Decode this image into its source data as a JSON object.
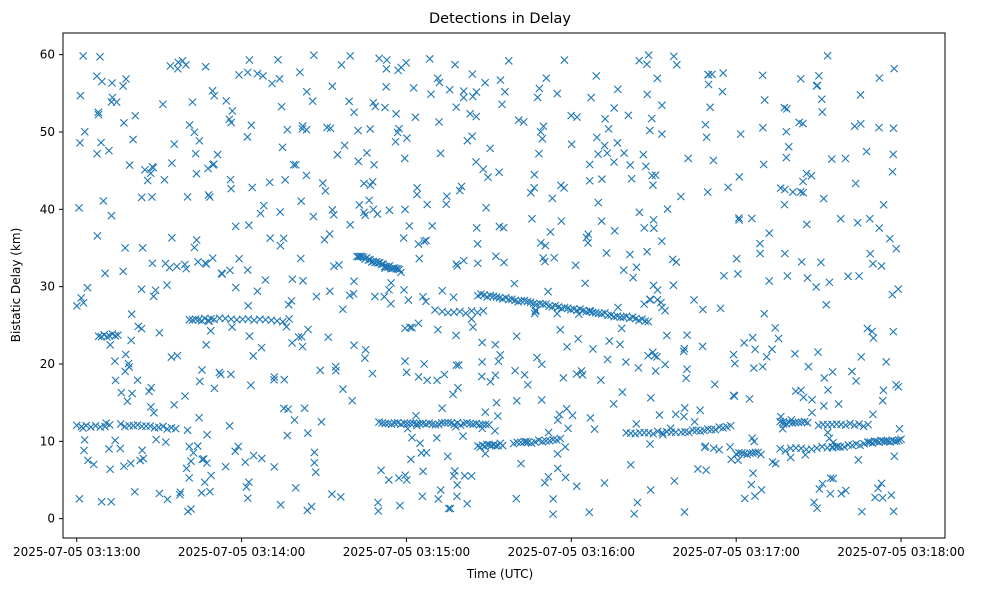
{
  "chart_data": {
    "type": "scatter",
    "title": "Detections in Delay",
    "xlabel": "Time (UTC)",
    "ylabel": "Bistatic Delay (km)",
    "marker": "x",
    "color": "#1f77b4",
    "grid": false,
    "xlim": [
      "2025-07-05 03:12:55",
      "2025-07-05 03:18:16"
    ],
    "ylim": [
      -2.5,
      62.8
    ],
    "x_ticks": [
      "2025-07-05 03:13:00",
      "2025-07-05 03:14:00",
      "2025-07-05 03:15:00",
      "2025-07-05 03:16:00",
      "2025-07-05 03:17:00",
      "2025-07-05 03:18:00"
    ],
    "y_ticks": [
      0,
      10,
      20,
      30,
      40,
      50,
      60
    ],
    "time_range": [
      "2025-07-05 03:13:00",
      "2025-07-05 03:18:00"
    ],
    "tracks": [
      {
        "t_start": "2025-07-05 03:13:00",
        "t_end": "2025-07-05 03:13:12",
        "delay_start": 12.0,
        "delay_end": 12.0,
        "points": 8
      },
      {
        "t_start": "2025-07-05 03:13:08",
        "t_end": "2025-07-05 03:13:15",
        "delay_start": 23.6,
        "delay_end": 23.8,
        "points": 8
      },
      {
        "t_start": "2025-07-05 03:13:16",
        "t_end": "2025-07-05 03:13:36",
        "delay_start": 12.1,
        "delay_end": 11.7,
        "points": 14
      },
      {
        "t_start": "2025-07-05 03:13:41",
        "t_end": "2025-07-05 03:13:50",
        "delay_start": 25.6,
        "delay_end": 25.8,
        "points": 9
      },
      {
        "t_start": "2025-07-05 03:13:52",
        "t_end": "2025-07-05 03:14:15",
        "delay_start": 26.0,
        "delay_end": 25.4,
        "points": 12
      },
      {
        "t_start": "2025-07-05 03:14:42",
        "t_end": "2025-07-05 03:14:58",
        "delay_start": 34.0,
        "delay_end": 32.0,
        "points": 28
      },
      {
        "t_start": "2025-07-05 03:14:50",
        "t_end": "2025-07-05 03:15:30",
        "delay_start": 12.4,
        "delay_end": 12.2,
        "points": 36
      },
      {
        "t_start": "2025-07-05 03:15:13",
        "t_end": "2025-07-05 03:15:28",
        "delay_start": 26.6,
        "delay_end": 26.8,
        "points": 8
      },
      {
        "t_start": "2025-07-05 03:15:26",
        "t_end": "2025-07-05 03:16:28",
        "delay_start": 29.0,
        "delay_end": 25.6,
        "points": 56
      },
      {
        "t_start": "2025-07-05 03:15:26",
        "t_end": "2025-07-05 03:15:35",
        "delay_start": 9.4,
        "delay_end": 9.6,
        "points": 12
      },
      {
        "t_start": "2025-07-05 03:15:39",
        "t_end": "2025-07-05 03:15:56",
        "delay_start": 9.7,
        "delay_end": 10.3,
        "points": 14
      },
      {
        "t_start": "2025-07-05 03:16:20",
        "t_end": "2025-07-05 03:16:38",
        "delay_start": 11.0,
        "delay_end": 11.2,
        "points": 12
      },
      {
        "t_start": "2025-07-05 03:16:40",
        "t_end": "2025-07-05 03:16:58",
        "delay_start": 11.1,
        "delay_end": 11.9,
        "points": 14
      },
      {
        "t_start": "2025-07-05 03:17:00",
        "t_end": "2025-07-05 03:17:09",
        "delay_start": 8.5,
        "delay_end": 8.4,
        "points": 10
      },
      {
        "t_start": "2025-07-05 03:17:16",
        "t_end": "2025-07-05 03:17:26",
        "delay_start": 12.4,
        "delay_end": 12.4,
        "points": 10
      },
      {
        "t_start": "2025-07-05 03:17:16",
        "t_end": "2025-07-05 03:17:37",
        "delay_start": 8.9,
        "delay_end": 9.3,
        "points": 12
      },
      {
        "t_start": "2025-07-05 03:17:30",
        "t_end": "2025-07-05 03:17:48",
        "delay_start": 12.2,
        "delay_end": 12.1,
        "points": 12
      },
      {
        "t_start": "2025-07-05 03:17:35",
        "t_end": "2025-07-05 03:17:48",
        "delay_start": 9.3,
        "delay_end": 9.7,
        "points": 10
      },
      {
        "t_start": "2025-07-05 03:17:48",
        "t_end": "2025-07-05 03:18:00",
        "delay_start": 9.9,
        "delay_end": 10.2,
        "points": 16
      }
    ],
    "clutter": {
      "delay_range": [
        0.5,
        60
      ],
      "t_range": [
        "2025-07-05 03:13:00",
        "2025-07-05 03:18:00"
      ],
      "points": 820
    }
  }
}
